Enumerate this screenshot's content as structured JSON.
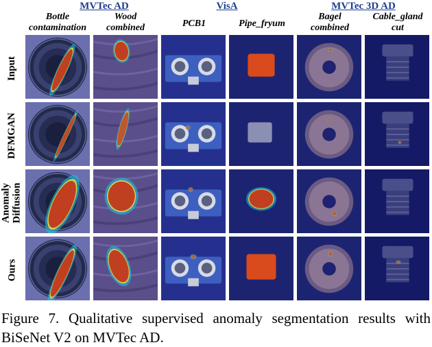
{
  "figure": {
    "groups": [
      {
        "label": "MVTec AD",
        "center": 134
      },
      {
        "label": "VisA",
        "center": 331
      },
      {
        "label": "MVTec 3D AD",
        "center": 528
      }
    ],
    "columns": [
      {
        "line1": "Bottle",
        "line2": "contamination"
      },
      {
        "line1": "Wood",
        "line2": "combined"
      },
      {
        "line1": "PCB1",
        "line2": ""
      },
      {
        "line1": "Pipe_fryum",
        "line2": ""
      },
      {
        "line1": "Bagel",
        "line2": "combined"
      },
      {
        "line1": "Cable_gland",
        "line2": "cut"
      }
    ],
    "rows": [
      {
        "label": "Input"
      },
      {
        "label": "DFMGAN"
      },
      {
        "label": "Anomaly Diffusion"
      },
      {
        "label": "Ours"
      }
    ],
    "caption": "Figure 7.  Qualitative supervised anomaly segmentation results with BiSeNet V2 on MVTec AD."
  }
}
